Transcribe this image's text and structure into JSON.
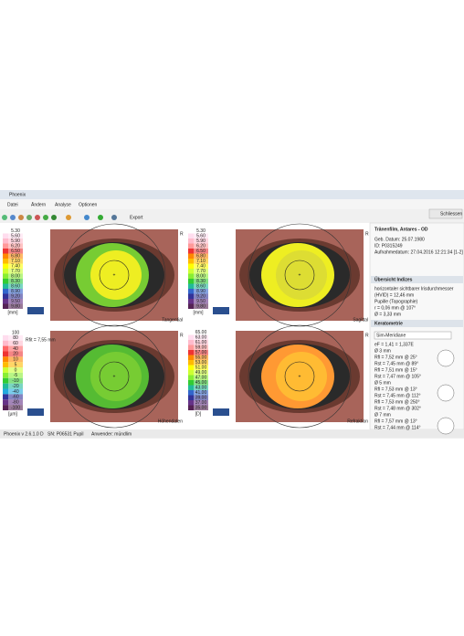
{
  "window": {
    "title": "Phoenix",
    "close_button": "Schliessen",
    "menu": [
      "Datei",
      "Ändern",
      "Analyse",
      "Optionen"
    ],
    "toolbar": {
      "export": "Export"
    }
  },
  "maps": [
    {
      "label": "Tangential",
      "side": "R",
      "unit": "[mm]",
      "scale": [
        "5.30",
        "5.60",
        "5.90",
        "6.20",
        "6.50",
        "6.80",
        "7.10",
        "7.40",
        "7.70",
        "8.00",
        "8.30",
        "8.60",
        "8.90",
        "9.20",
        "9.50",
        "9.80"
      ]
    },
    {
      "label": "Sagittal",
      "side": "R",
      "unit": "[mm]",
      "scale": [
        "5.30",
        "5.60",
        "5.90",
        "6.20",
        "6.50",
        "6.80",
        "7.10",
        "7.40",
        "7.70",
        "8.00",
        "8.30",
        "8.60",
        "8.90",
        "9.20",
        "9.50",
        "9.80"
      ]
    },
    {
      "label": "Höhendaten",
      "side": "R",
      "unit": "[µm]",
      "annotation": "Rfit = 7,55 mm",
      "scale": [
        "100",
        "80",
        "60",
        "40",
        "20",
        "10",
        "5",
        "0",
        "-5",
        "-10",
        "-20",
        "-40",
        "-60",
        "-80",
        "-100"
      ]
    },
    {
      "label": "Refraktion",
      "side": "R",
      "unit": "[D]",
      "scale": [
        "65.00",
        "63.00",
        "61.00",
        "59.00",
        "57.00",
        "55.00",
        "53.00",
        "51.00",
        "49.00",
        "47.00",
        "45.00",
        "43.00",
        "41.00",
        "39.00",
        "37.00",
        "35.00"
      ]
    }
  ],
  "patient": {
    "title": "Tränenfilm, Antares - OD",
    "lines": [
      "Geb. Datum: 25.07.1980",
      "ID: P0315249",
      "Aufnahmedatum: 27.04.2016 12:21:34 [1-2]"
    ]
  },
  "indices": {
    "header": "Übersicht Indizes",
    "lines": [
      "horizontaler sichtbarer Irisdurchmesser",
      "(HVID) = 12,46 mm",
      "Pupille (Topographie)",
      "r = 0,06 mm @ 107°",
      "Ø = 3,33 mm"
    ]
  },
  "keratometry": {
    "header": "Keratometrie",
    "dropdown": "Sim-Meridiane",
    "lines": [
      "eF = 1,41 = 1,337E",
      "Ø 3 mm",
      "Rfl = 7,52 mm @ 25°",
      "Rst = 7,45 mm @ 89°",
      "Rfl = 7,51 mm @ 15°",
      "Rst = 7,47 mm @ 105°",
      "Ø 5 mm",
      "Rfl = 7,53 mm @ 13°",
      "Rst = 7,45 mm @ 112°",
      "Rfl = 7,53 mm @ 250°",
      "Rst = 7,48 mm @ 302°",
      "Ø 7 mm",
      "Rfl = 7,57 mm @ 13°",
      "Rst = 7,44 mm @ 114°"
    ]
  },
  "status_bar": [
    "Phoenix v 2.6.1.0 D",
    "SN: P06531 Pupil",
    "Anwender: mündlim"
  ]
}
